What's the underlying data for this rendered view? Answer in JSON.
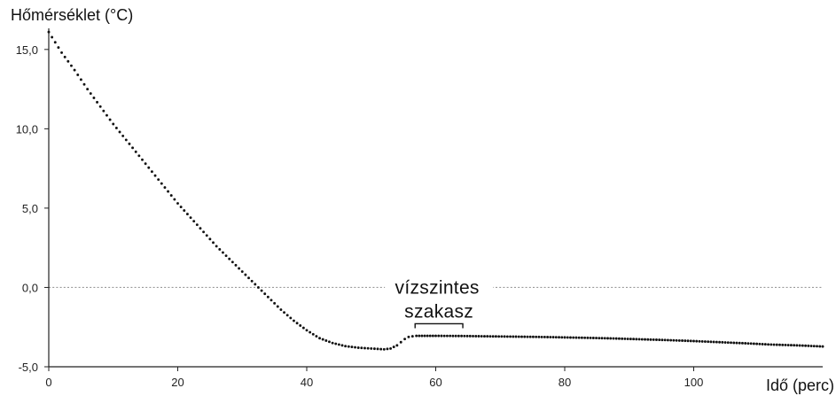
{
  "chart_data": {
    "type": "scatter",
    "ylabel": "Hőmérséklet (°C)",
    "xlabel": "Idő (perc)",
    "xlim": [
      0,
      120
    ],
    "ylim": [
      -5,
      17
    ],
    "x_ticks": [
      0,
      20,
      40,
      60,
      80,
      100
    ],
    "x_tick_labels": [
      "0",
      "20",
      "40",
      "60",
      "80",
      "100"
    ],
    "y_ticks": [
      -5,
      0,
      5,
      10,
      15
    ],
    "y_tick_labels": [
      "-5,0",
      "0,0",
      "5,0",
      "10,0",
      "15,0"
    ],
    "reference_line": {
      "y": 0,
      "style": "dotted"
    },
    "annotation": {
      "lines": [
        "vízszintes",
        "szakasz"
      ],
      "range": [
        56.8,
        64.2
      ]
    },
    "grid": false,
    "legend": "none",
    "point_color": "#111111",
    "series": [
      {
        "x": [
          0,
          2,
          4,
          6,
          8,
          10,
          12,
          14,
          16,
          18,
          20,
          22,
          24,
          26,
          28,
          30,
          32,
          34,
          36,
          38,
          40,
          42,
          44,
          46,
          48,
          50,
          52,
          53,
          54,
          54.6,
          55.2,
          55.8,
          56.4,
          57,
          60,
          64,
          68,
          72,
          76,
          80,
          84,
          88,
          92,
          96,
          100,
          104,
          108,
          112,
          116,
          120
        ],
        "y": [
          16.1,
          14.8,
          13.7,
          12.5,
          11.4,
          10.3,
          9.3,
          8.3,
          7.3,
          6.3,
          5.3,
          4.4,
          3.5,
          2.6,
          1.8,
          1.0,
          0.2,
          -0.6,
          -1.4,
          -2.1,
          -2.7,
          -3.2,
          -3.5,
          -3.7,
          -3.8,
          -3.85,
          -3.9,
          -3.85,
          -3.65,
          -3.45,
          -3.25,
          -3.12,
          -3.08,
          -3.05,
          -3.05,
          -3.06,
          -3.08,
          -3.1,
          -3.12,
          -3.15,
          -3.18,
          -3.22,
          -3.27,
          -3.32,
          -3.38,
          -3.45,
          -3.52,
          -3.6,
          -3.65,
          -3.72
        ]
      }
    ]
  }
}
